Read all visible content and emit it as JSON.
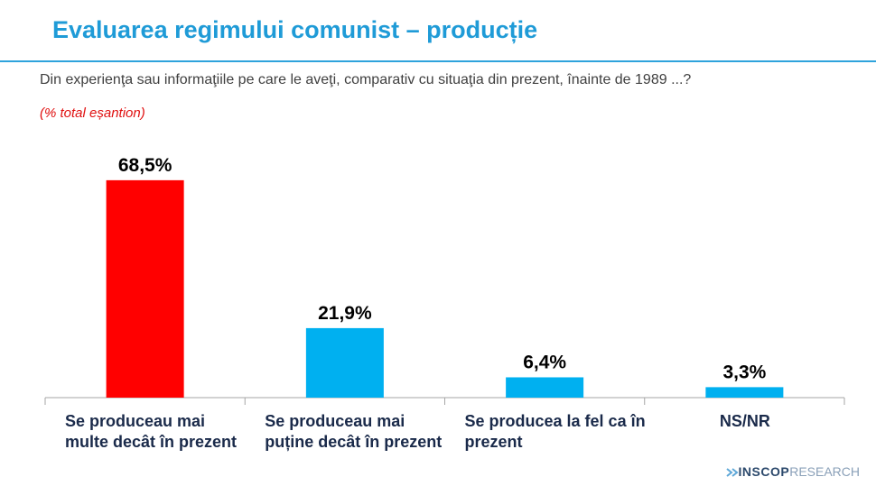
{
  "chart_data": {
    "type": "bar",
    "title": "Evaluarea regimului comunist – producție",
    "subtitle": "Din experienţa sau informaţiile pe care le aveţi, comparativ cu situaţia din prezent, înainte de 1989 ...?",
    "note": "(% total eșantion)",
    "categories": [
      "Se produceau mai multe decât în prezent",
      "Se produceau mai puține decât în prezent",
      "Se producea la fel ca în prezent",
      "NS/NR"
    ],
    "values": [
      68.5,
      21.9,
      6.4,
      3.3
    ],
    "value_labels": [
      "68,5%",
      "21,9%",
      "6,4%",
      "3,3%"
    ],
    "colors": [
      "#ff0000",
      "#00b0f0",
      "#00b0f0",
      "#00b0f0"
    ]
  },
  "logo": {
    "name": "INSCOP",
    "suffix": "RESEARCH"
  }
}
